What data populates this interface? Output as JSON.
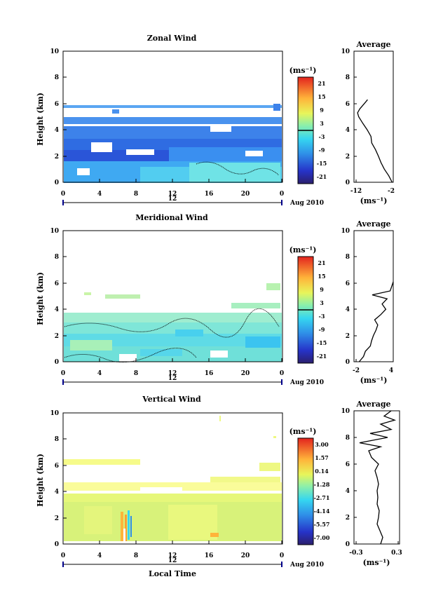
{
  "chart_data": [
    {
      "type": "heatmap",
      "title": "Zonal Wind",
      "ylabel": "Height (km)",
      "xlabel": "",
      "unit": "(ms⁻¹)",
      "x_ticks": [
        "0",
        "4",
        "8",
        "12",
        "16",
        "20",
        "0"
      ],
      "y_ticks": [
        "0",
        "2",
        "4",
        "6",
        "8",
        "10"
      ],
      "xlim": [
        0,
        24
      ],
      "ylim": [
        0,
        10
      ],
      "date_label": "12",
      "date_suffix": "Aug 2010",
      "colorbar_ticks": [
        "21",
        "15",
        "9",
        "3",
        "-3",
        "-9",
        "-15",
        "-21"
      ],
      "colorbar_range": [
        -24,
        24
      ],
      "typical_value": -7,
      "avg_profile": {
        "title": "Average",
        "xlabel": "(ms⁻¹)",
        "x_ticks": [
          "-12",
          "-2"
        ],
        "y_ticks": [
          "0",
          "2",
          "4",
          "6",
          "8",
          "10"
        ],
        "xlim": [
          -12,
          -2
        ],
        "ylim": [
          0,
          10
        ],
        "heights": [
          0.0,
          0.5,
          1.0,
          1.5,
          2.0,
          2.5,
          3.0,
          3.5,
          4.0,
          4.5,
          5.0,
          5.3,
          5.6,
          6.0,
          6.3
        ],
        "values": [
          -2.3,
          -3.2,
          -4.4,
          -5.3,
          -6.0,
          -6.8,
          -7.8,
          -8.0,
          -9.0,
          -10.2,
          -11.3,
          -11.6,
          -11.0,
          -9.8,
          -8.9
        ]
      }
    },
    {
      "type": "heatmap",
      "title": "Meridional Wind",
      "ylabel": "Height (km)",
      "xlabel": "",
      "unit": "(ms⁻¹)",
      "x_ticks": [
        "0",
        "4",
        "8",
        "12",
        "16",
        "20",
        "0"
      ],
      "y_ticks": [
        "0",
        "2",
        "4",
        "6",
        "8",
        "10"
      ],
      "xlim": [
        0,
        24
      ],
      "ylim": [
        0,
        10
      ],
      "date_label": "12",
      "date_suffix": "Aug 2010",
      "colorbar_ticks": [
        "21",
        "15",
        "9",
        "3",
        "-3",
        "-9",
        "-15",
        "-21"
      ],
      "colorbar_range": [
        -24,
        24
      ],
      "typical_value": 1,
      "avg_profile": {
        "title": "Average",
        "xlabel": "(ms⁻¹)",
        "x_ticks": [
          "-2",
          "4"
        ],
        "y_ticks": [
          "0",
          "2",
          "4",
          "6",
          "8",
          "10"
        ],
        "xlim": [
          -2,
          4
        ],
        "ylim": [
          0,
          10
        ],
        "heights": [
          0.0,
          0.4,
          0.8,
          1.2,
          1.6,
          2.0,
          2.4,
          2.8,
          3.2,
          3.6,
          4.0,
          4.4,
          4.8,
          5.1,
          5.4,
          5.8,
          6.1
        ],
        "values": [
          -1.5,
          -0.8,
          -0.5,
          0.3,
          0.5,
          0.8,
          1.2,
          1.5,
          1.0,
          2.0,
          2.8,
          2.2,
          3.0,
          0.6,
          3.5,
          3.8,
          4.0
        ]
      }
    },
    {
      "type": "heatmap",
      "title": "Vertical Wind",
      "ylabel": "Height (km)",
      "xlabel": "Local Time",
      "unit": "(ms⁻¹)",
      "x_ticks": [
        "0",
        "4",
        "8",
        "12",
        "16",
        "20",
        "0"
      ],
      "y_ticks": [
        "0",
        "2",
        "4",
        "6",
        "8",
        "10"
      ],
      "xlim": [
        0,
        24
      ],
      "ylim": [
        0,
        10
      ],
      "date_label": "12",
      "date_suffix": "Aug 2010",
      "colorbar_ticks": [
        "3.00",
        "1.57",
        "0.14",
        "-1.28",
        "-2.71",
        "-4.14",
        "-5.57",
        "-7.00"
      ],
      "colorbar_range": [
        -7.7,
        3.7
      ],
      "typical_value": 0.5,
      "avg_profile": {
        "title": "Average",
        "xlabel": "(ms⁻¹)",
        "x_ticks": [
          "-0.3",
          "0.3"
        ],
        "y_ticks": [
          "0",
          "2",
          "4",
          "6",
          "8",
          "10"
        ],
        "xlim": [
          -0.3,
          0.3
        ],
        "ylim": [
          0,
          10
        ],
        "heights": [
          0.0,
          0.5,
          1.0,
          1.5,
          2.0,
          2.5,
          3.0,
          3.5,
          4.0,
          4.5,
          5.0,
          5.5,
          6.0,
          6.5,
          7.0,
          7.3,
          7.6,
          8.0,
          8.3,
          8.6,
          9.0,
          9.3,
          9.6,
          10.0
        ],
        "values": [
          0.05,
          0.08,
          0.04,
          0.0,
          0.02,
          0.03,
          0.0,
          0.01,
          0.0,
          0.02,
          0.0,
          -0.03,
          0.02,
          -0.08,
          -0.12,
          0.05,
          -0.25,
          0.15,
          -0.1,
          0.2,
          0.05,
          0.25,
          0.1,
          0.2
        ]
      }
    }
  ]
}
